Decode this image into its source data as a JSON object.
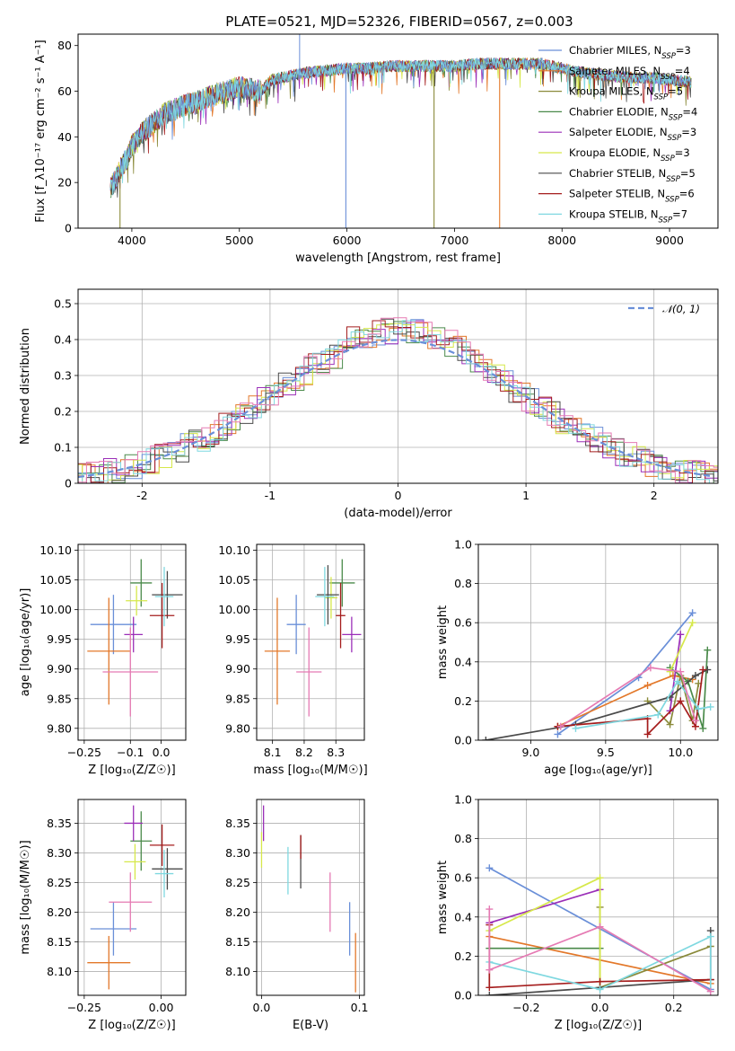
{
  "title": "PLATE=0521, MJD=52326, FIBERID=0567, z=0.003",
  "palette": [
    "#6a8fd8",
    "#e3782a",
    "#8a8a3a",
    "#4a8a4a",
    "#9b2fb8",
    "#d6e84a",
    "#4a4a4a",
    "#a51d1d",
    "#7fd8e0",
    "#e57ab3"
  ],
  "chart_data": [
    {
      "id": "spectrum",
      "type": "line",
      "xlabel": "wavelength [Angstrom, rest frame]",
      "ylabel": "Flux [f_λ10⁻¹⁷ erg cm⁻² s⁻¹ A⁻¹]",
      "xlim": [
        3500,
        9450
      ],
      "ylim": [
        0,
        85
      ],
      "xticks": [
        4000,
        5000,
        6000,
        7000,
        8000,
        9000
      ],
      "yticks": [
        0,
        20,
        40,
        60,
        80
      ],
      "grid": false,
      "legend_position": "top-right",
      "envelope": {
        "x": [
          3800,
          3850,
          3900,
          3950,
          4000,
          4050,
          4100,
          4150,
          4200,
          4300,
          4400,
          4500,
          4600,
          4700,
          4800,
          4900,
          5000,
          5100,
          5200,
          5300,
          5400,
          5500,
          5600,
          5800,
          6000,
          6200,
          6400,
          6600,
          6800,
          7000,
          7200,
          7400,
          7600,
          7800,
          8000,
          8200,
          8400,
          8600,
          8800,
          9000,
          9200
        ],
        "y": [
          18,
          21,
          27,
          30,
          36,
          39,
          42,
          44,
          46,
          50,
          52,
          54,
          55,
          57,
          59,
          60,
          62,
          61,
          60,
          65,
          66,
          67,
          68,
          69,
          70,
          70,
          71,
          71,
          71,
          71,
          72,
          72,
          72,
          72,
          70,
          68,
          67,
          66,
          66,
          65,
          64
        ]
      },
      "series": [
        {
          "name": "Chabrier MILES, N_SSP=3"
        },
        {
          "name": "Salpeter MILES, N_SSP=4"
        },
        {
          "name": "Kroupa MILES, N_SSP=5"
        },
        {
          "name": "Chabrier ELODIE, N_SSP=4"
        },
        {
          "name": "Salpeter ELODIE, N_SSP=3"
        },
        {
          "name": "Kroupa ELODIE, N_SSP=3"
        },
        {
          "name": "Chabrier STELIB, N_SSP=5"
        },
        {
          "name": "Salpeter STELIB, N_SSP=6"
        },
        {
          "name": "Kroupa STELIB, N_SSP=7"
        }
      ],
      "legend": [
        {
          "pre": "Chabrier MILES, N",
          "sub": "SSP",
          "post": "=3",
          "color": "#6a8fd8"
        },
        {
          "pre": "Salpeter MILES, N",
          "sub": "SSP",
          "post": "=4",
          "color": "#e3782a"
        },
        {
          "pre": "Kroupa MILES, N",
          "sub": "SSP",
          "post": "=5",
          "color": "#8a8a3a"
        },
        {
          "pre": "Chabrier ELODIE, N",
          "sub": "SSP",
          "post": "=4",
          "color": "#4a8a4a"
        },
        {
          "pre": "Salpeter ELODIE, N",
          "sub": "SSP",
          "post": "=3",
          "color": "#9b2fb8"
        },
        {
          "pre": "Kroupa ELODIE, N",
          "sub": "SSP",
          "post": "=3",
          "color": "#d6e84a"
        },
        {
          "pre": "Chabrier STELIB, N",
          "sub": "SSP",
          "post": "=5",
          "color": "#4a4a4a"
        },
        {
          "pre": "Salpeter STELIB, N",
          "sub": "SSP",
          "post": "=6",
          "color": "#a51d1d"
        },
        {
          "pre": "Kroupa STELIB, N",
          "sub": "SSP",
          "post": "=7",
          "color": "#7fd8e0"
        }
      ],
      "drops": [
        {
          "x": 3890,
          "color": "#8a8a3a"
        },
        {
          "x": 5990,
          "color": "#6a8fd8"
        },
        {
          "x": 6810,
          "color": "#8a8a3a"
        },
        {
          "x": 7420,
          "color": "#e3782a"
        }
      ],
      "spike": {
        "x": 5560,
        "y": 85
      }
    },
    {
      "id": "residuals",
      "type": "histogram",
      "xlabel": "(data-model)/error",
      "ylabel": "Normed distribution",
      "xlim": [
        -2.5,
        2.5
      ],
      "ylim": [
        0,
        0.54
      ],
      "xticks": [
        -2,
        -1,
        0,
        1,
        2
      ],
      "yticks": [
        0.0,
        0.1,
        0.2,
        0.3,
        0.4,
        0.5
      ],
      "grid": true,
      "legend_position": "top-right",
      "legend": [
        {
          "label": "𝒩(0, 1)",
          "color": "#6a8fd8",
          "dashed": true
        }
      ],
      "bin_width": 0.1
    },
    {
      "id": "age-vs-Z",
      "type": "errorbar",
      "xlabel": "Z [log₁₀(Z/Z☉)]",
      "ylabel": "age  [log₁₀(age/yr)]",
      "xlim": [
        -0.27,
        0.08
      ],
      "ylim": [
        9.78,
        10.11
      ],
      "xticks": [
        -0.25,
        -0.1,
        0.0
      ],
      "xticklabels": [
        "−0.25",
        "−0.1",
        "0.0"
      ],
      "yticks": [
        9.8,
        9.85,
        9.9,
        9.95,
        10.0,
        10.05,
        10.1
      ],
      "yticklabels": [
        "9.80",
        "9.85",
        "9.90",
        "9.95",
        "10.00",
        "10.05",
        "10.10"
      ],
      "grid": true,
      "points": [
        {
          "x": -0.155,
          "xerr": 0.075,
          "y": 9.975,
          "yerr": 0.05,
          "color": "#6a8fd8"
        },
        {
          "x": -0.17,
          "xerr": 0.07,
          "y": 9.93,
          "yerr": 0.09,
          "color": "#e3782a"
        },
        {
          "x": -0.065,
          "xerr": 0.035,
          "y": 10.045,
          "yerr": 0.04,
          "color": "#4a8a4a"
        },
        {
          "x": -0.09,
          "xerr": 0.03,
          "y": 9.958,
          "yerr": 0.03,
          "color": "#9b2fb8"
        },
        {
          "x": -0.08,
          "xerr": 0.035,
          "y": 10.015,
          "yerr": 0.025,
          "color": "#d6e84a"
        },
        {
          "x": 0.02,
          "xerr": 0.05,
          "y": 10.025,
          "yerr": 0.04,
          "color": "#4a4a4a"
        },
        {
          "x": 0.003,
          "xerr": 0.04,
          "y": 9.99,
          "yerr": 0.055,
          "color": "#a51d1d"
        },
        {
          "x": 0.01,
          "xerr": 0.03,
          "y": 10.022,
          "yerr": 0.05,
          "color": "#7fd8e0"
        },
        {
          "x": -0.1,
          "xerr": 0.09,
          "y": 9.895,
          "yerr": 0.075,
          "color": "#e57ab3"
        }
      ]
    },
    {
      "id": "age-vs-mass",
      "type": "errorbar",
      "xlabel": "mass [log₁₀(M/M☉)]",
      "ylabel": "",
      "xlim": [
        8.05,
        8.39
      ],
      "ylim": [
        9.78,
        10.11
      ],
      "xticks": [
        8.1,
        8.2,
        8.3
      ],
      "xticklabels": [
        "8.1",
        "8.2",
        "8.3"
      ],
      "yticks": [
        9.8,
        9.85,
        9.9,
        9.95,
        10.0,
        10.05,
        10.1
      ],
      "yticklabels": [
        "9.80",
        "9.85",
        "9.90",
        "9.95",
        "10.00",
        "10.05",
        "10.10"
      ],
      "grid": true,
      "points": [
        {
          "x": 8.175,
          "xerr": 0.03,
          "y": 9.975,
          "yerr": 0.05,
          "color": "#6a8fd8"
        },
        {
          "x": 8.115,
          "xerr": 0.04,
          "y": 9.93,
          "yerr": 0.09,
          "color": "#e3782a"
        },
        {
          "x": 8.32,
          "xerr": 0.04,
          "y": 10.045,
          "yerr": 0.04,
          "color": "#4a8a4a"
        },
        {
          "x": 8.35,
          "xerr": 0.03,
          "y": 9.958,
          "yerr": 0.03,
          "color": "#9b2fb8"
        },
        {
          "x": 8.285,
          "xerr": 0.02,
          "y": 10.02,
          "yerr": 0.035,
          "color": "#d6e84a"
        },
        {
          "x": 8.275,
          "xerr": 0.035,
          "y": 10.025,
          "yerr": 0.05,
          "color": "#4a4a4a"
        },
        {
          "x": 8.315,
          "xerr": 0.015,
          "y": 9.99,
          "yerr": 0.055,
          "color": "#a51d1d"
        },
        {
          "x": 8.265,
          "xerr": 0.03,
          "y": 10.022,
          "yerr": 0.05,
          "color": "#7fd8e0"
        },
        {
          "x": 8.215,
          "xerr": 0.04,
          "y": 9.895,
          "yerr": 0.075,
          "color": "#e57ab3"
        }
      ]
    },
    {
      "id": "weight-vs-age",
      "type": "line",
      "xlabel": "age  [log₁₀(age/yr)]",
      "ylabel": "mass weight",
      "xlim": [
        8.65,
        10.25
      ],
      "ylim": [
        0,
        1
      ],
      "xticks": [
        9.0,
        9.5,
        10.0
      ],
      "xticklabels": [
        "9.0",
        "9.5",
        "10.0"
      ],
      "yticks": [
        0.0,
        0.2,
        0.4,
        0.6,
        0.8,
        1.0
      ],
      "yticklabels": [
        "0.0",
        "0.2",
        "0.4",
        "0.6",
        "0.8",
        "1.0"
      ],
      "grid": true,
      "series": [
        {
          "color": "#6a8fd8",
          "x": [
            9.18,
            9.72,
            10.08
          ],
          "y": [
            0.03,
            0.32,
            0.65
          ]
        },
        {
          "color": "#e3782a",
          "x": [
            9.18,
            9.78,
            9.95,
            10.08
          ],
          "y": [
            0.07,
            0.28,
            0.33,
            0.31
          ]
        },
        {
          "color": "#8a8a3a",
          "x": [
            9.78,
            9.93,
            10.0,
            10.08,
            10.12
          ],
          "y": [
            0.2,
            0.08,
            0.33,
            0.1,
            0.29
          ]
        },
        {
          "color": "#4a8a4a",
          "x": [
            9.93,
            10.05,
            10.15,
            10.18
          ],
          "y": [
            0.37,
            0.3,
            0.06,
            0.46
          ]
        },
        {
          "color": "#9b2fb8",
          "x": [
            9.93,
            10.0
          ],
          "y": [
            0.15,
            0.54
          ]
        },
        {
          "color": "#d6e84a",
          "x": [
            9.93,
            10.08
          ],
          "y": [
            0.35,
            0.6
          ]
        },
        {
          "color": "#4a4a4a",
          "x": [
            8.7,
            9.3,
            9.93,
            10.1,
            10.18
          ],
          "y": [
            0.0,
            0.08,
            0.22,
            0.33,
            0.36
          ]
        },
        {
          "color": "#a51d1d",
          "x": [
            9.18,
            9.78,
            9.78,
            10.0,
            10.1,
            10.15
          ],
          "y": [
            0.07,
            0.11,
            0.03,
            0.2,
            0.07,
            0.36
          ]
        },
        {
          "color": "#7fd8e0",
          "x": [
            9.3,
            9.85,
            9.98,
            10.12,
            10.2
          ],
          "y": [
            0.06,
            0.13,
            0.3,
            0.16,
            0.17
          ]
        },
        {
          "color": "#e57ab3",
          "x": [
            9.2,
            9.8,
            10.0,
            10.1
          ],
          "y": [
            0.07,
            0.37,
            0.35,
            0.1
          ]
        }
      ]
    },
    {
      "id": "mass-vs-Z",
      "type": "errorbar",
      "xlabel": "Z [log₁₀(Z/Z☉)]",
      "ylabel": "mass [log₁₀(M/M☉)]",
      "xlim": [
        -0.27,
        0.08
      ],
      "ylim": [
        8.06,
        8.39
      ],
      "xticks": [
        -0.25,
        0.0
      ],
      "xticklabels": [
        "−0.25",
        "0.00"
      ],
      "yticks": [
        8.1,
        8.15,
        8.2,
        8.25,
        8.3,
        8.35
      ],
      "yticklabels": [
        "8.10",
        "8.15",
        "8.20",
        "8.25",
        "8.30",
        "8.35"
      ],
      "grid": true,
      "points": [
        {
          "x": -0.155,
          "xerr": 0.075,
          "y": 8.172,
          "yerr": 0.045,
          "color": "#6a8fd8"
        },
        {
          "x": -0.17,
          "xerr": 0.07,
          "y": 8.115,
          "yerr": 0.045,
          "color": "#e3782a"
        },
        {
          "x": -0.065,
          "xerr": 0.035,
          "y": 8.32,
          "yerr": 0.05,
          "color": "#4a8a4a"
        },
        {
          "x": -0.09,
          "xerr": 0.03,
          "y": 8.35,
          "yerr": 0.03,
          "color": "#9b2fb8"
        },
        {
          "x": -0.085,
          "xerr": 0.035,
          "y": 8.285,
          "yerr": 0.03,
          "color": "#d6e84a"
        },
        {
          "x": 0.02,
          "xerr": 0.05,
          "y": 8.273,
          "yerr": 0.035,
          "color": "#4a4a4a"
        },
        {
          "x": 0.003,
          "xerr": 0.04,
          "y": 8.313,
          "yerr": 0.035,
          "color": "#a51d1d"
        },
        {
          "x": 0.01,
          "xerr": 0.03,
          "y": 8.265,
          "yerr": 0.04,
          "color": "#7fd8e0"
        },
        {
          "x": -0.1,
          "xerr": 0.07,
          "y": 8.217,
          "yerr": 0.05,
          "color": "#e57ab3"
        }
      ]
    },
    {
      "id": "mass-vs-EBV",
      "type": "errorbar",
      "xlabel": "E(B-V)",
      "ylabel": "",
      "xlim": [
        -0.005,
        0.105
      ],
      "ylim": [
        8.06,
        8.39
      ],
      "xticks": [
        0.0,
        0.1
      ],
      "xticklabels": [
        "0.0",
        "0.1"
      ],
      "yticks": [
        8.1,
        8.15,
        8.2,
        8.25,
        8.3,
        8.35
      ],
      "yticklabels": [
        "8.10",
        "8.15",
        "8.20",
        "8.25",
        "8.30",
        "8.35"
      ],
      "grid": true,
      "points": [
        {
          "x": 0.002,
          "xerr": 0,
          "y": 8.35,
          "yerr": 0.03,
          "color": "#9b2fb8"
        },
        {
          "x": 0.0,
          "xerr": 0,
          "y": 8.305,
          "yerr": 0.03,
          "color": "#d6e84a"
        },
        {
          "x": 0.027,
          "xerr": 0,
          "y": 8.27,
          "yerr": 0.04,
          "color": "#7fd8e0"
        },
        {
          "x": 0.04,
          "xerr": 0,
          "y": 8.285,
          "yerr": 0.045,
          "color": "#4a4a4a"
        },
        {
          "x": 0.04,
          "xerr": 0,
          "y": 8.31,
          "yerr": 0.02,
          "color": "#a51d1d"
        },
        {
          "x": 0.07,
          "xerr": 0,
          "y": 8.217,
          "yerr": 0.05,
          "color": "#e57ab3"
        },
        {
          "x": 0.09,
          "xerr": 0,
          "y": 8.172,
          "yerr": 0.045,
          "color": "#6a8fd8"
        },
        {
          "x": 0.096,
          "xerr": 0,
          "y": 8.115,
          "yerr": 0.05,
          "color": "#e3782a"
        }
      ]
    },
    {
      "id": "weight-vs-Z",
      "type": "line",
      "xlabel": "Z [log₁₀(Z/Z☉)]",
      "ylabel": "mass weight",
      "xlim": [
        -0.33,
        0.32
      ],
      "ylim": [
        0,
        1
      ],
      "xticks": [
        -0.2,
        0.0,
        0.2
      ],
      "xticklabels": [
        "−0.2",
        "0.0",
        "0.2"
      ],
      "yticks": [
        0.0,
        0.2,
        0.4,
        0.6,
        0.8,
        1.0
      ],
      "yticklabels": [
        "0.0",
        "0.2",
        "0.4",
        "0.6",
        "0.8",
        "1.0"
      ],
      "grid": true,
      "series": [
        {
          "color": "#6a8fd8",
          "x": [
            -0.3,
            0.3
          ],
          "y": [
            0.65,
            0.03
          ]
        },
        {
          "color": "#e3782a",
          "x": [
            -0.3,
            0.3
          ],
          "y": [
            0.3,
            0.06
          ]
        },
        {
          "color": "#8a8a3a",
          "x": [
            0.0,
            0.0,
            0.3
          ],
          "y": [
            0.45,
            0.04,
            0.25
          ]
        },
        {
          "color": "#4a8a4a",
          "x": [
            -0.3,
            0.0
          ],
          "y": [
            0.24,
            0.24
          ]
        },
        {
          "color": "#9b2fb8",
          "x": [
            -0.3,
            0.0
          ],
          "y": [
            0.37,
            0.54
          ]
        },
        {
          "color": "#d6e84a",
          "x": [
            -0.3,
            0.0,
            0.0
          ],
          "y": [
            0.33,
            0.6,
            0.07
          ]
        },
        {
          "color": "#4a4a4a",
          "x": [
            -0.3,
            0.3,
            0.3
          ],
          "y": [
            0.0,
            0.08,
            0.33
          ]
        },
        {
          "color": "#a51d1d",
          "x": [
            -0.3,
            -0.3,
            0.0,
            0.3
          ],
          "y": [
            0.36,
            0.04,
            0.07,
            0.08
          ]
        },
        {
          "color": "#7fd8e0",
          "x": [
            -0.3,
            0.0,
            0.3,
            0.3
          ],
          "y": [
            0.17,
            0.03,
            0.3,
            0.02
          ]
        },
        {
          "color": "#e57ab3",
          "x": [
            -0.3,
            -0.3,
            0.0,
            0.3
          ],
          "y": [
            0.44,
            0.13,
            0.35,
            0.02
          ]
        }
      ]
    }
  ]
}
